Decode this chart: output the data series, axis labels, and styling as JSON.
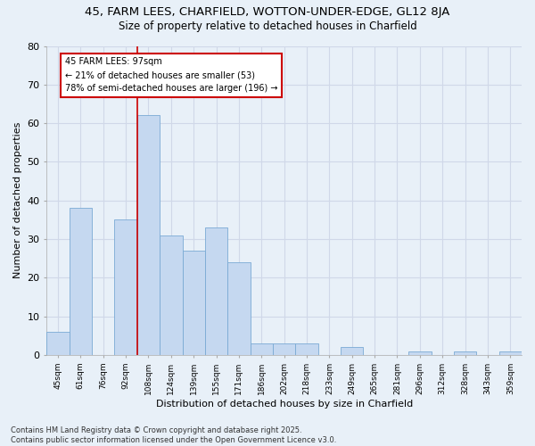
{
  "title_line1": "45, FARM LEES, CHARFIELD, WOTTON-UNDER-EDGE, GL12 8JA",
  "title_line2": "Size of property relative to detached houses in Charfield",
  "xlabel": "Distribution of detached houses by size in Charfield",
  "ylabel": "Number of detached properties",
  "categories": [
    "45sqm",
    "61sqm",
    "76sqm",
    "92sqm",
    "108sqm",
    "124sqm",
    "139sqm",
    "155sqm",
    "171sqm",
    "186sqm",
    "202sqm",
    "218sqm",
    "233sqm",
    "249sqm",
    "265sqm",
    "281sqm",
    "296sqm",
    "312sqm",
    "328sqm",
    "343sqm",
    "359sqm"
  ],
  "values": [
    6,
    38,
    0,
    35,
    62,
    31,
    27,
    33,
    24,
    3,
    3,
    3,
    0,
    2,
    0,
    0,
    1,
    0,
    1,
    0,
    1
  ],
  "bar_color": "#c5d8f0",
  "bar_edge_color": "#7aaad4",
  "background_color": "#e8f0f8",
  "grid_color": "#d0d8e8",
  "redline_index": 4,
  "annotation_text": "45 FARM LEES: 97sqm\n← 21% of detached houses are smaller (53)\n78% of semi-detached houses are larger (196) →",
  "annotation_box_color": "#ffffff",
  "annotation_box_edge": "#cc0000",
  "ylim": [
    0,
    80
  ],
  "yticks": [
    0,
    10,
    20,
    30,
    40,
    50,
    60,
    70,
    80
  ],
  "footnote": "Contains HM Land Registry data © Crown copyright and database right 2025.\nContains public sector information licensed under the Open Government Licence v3.0."
}
